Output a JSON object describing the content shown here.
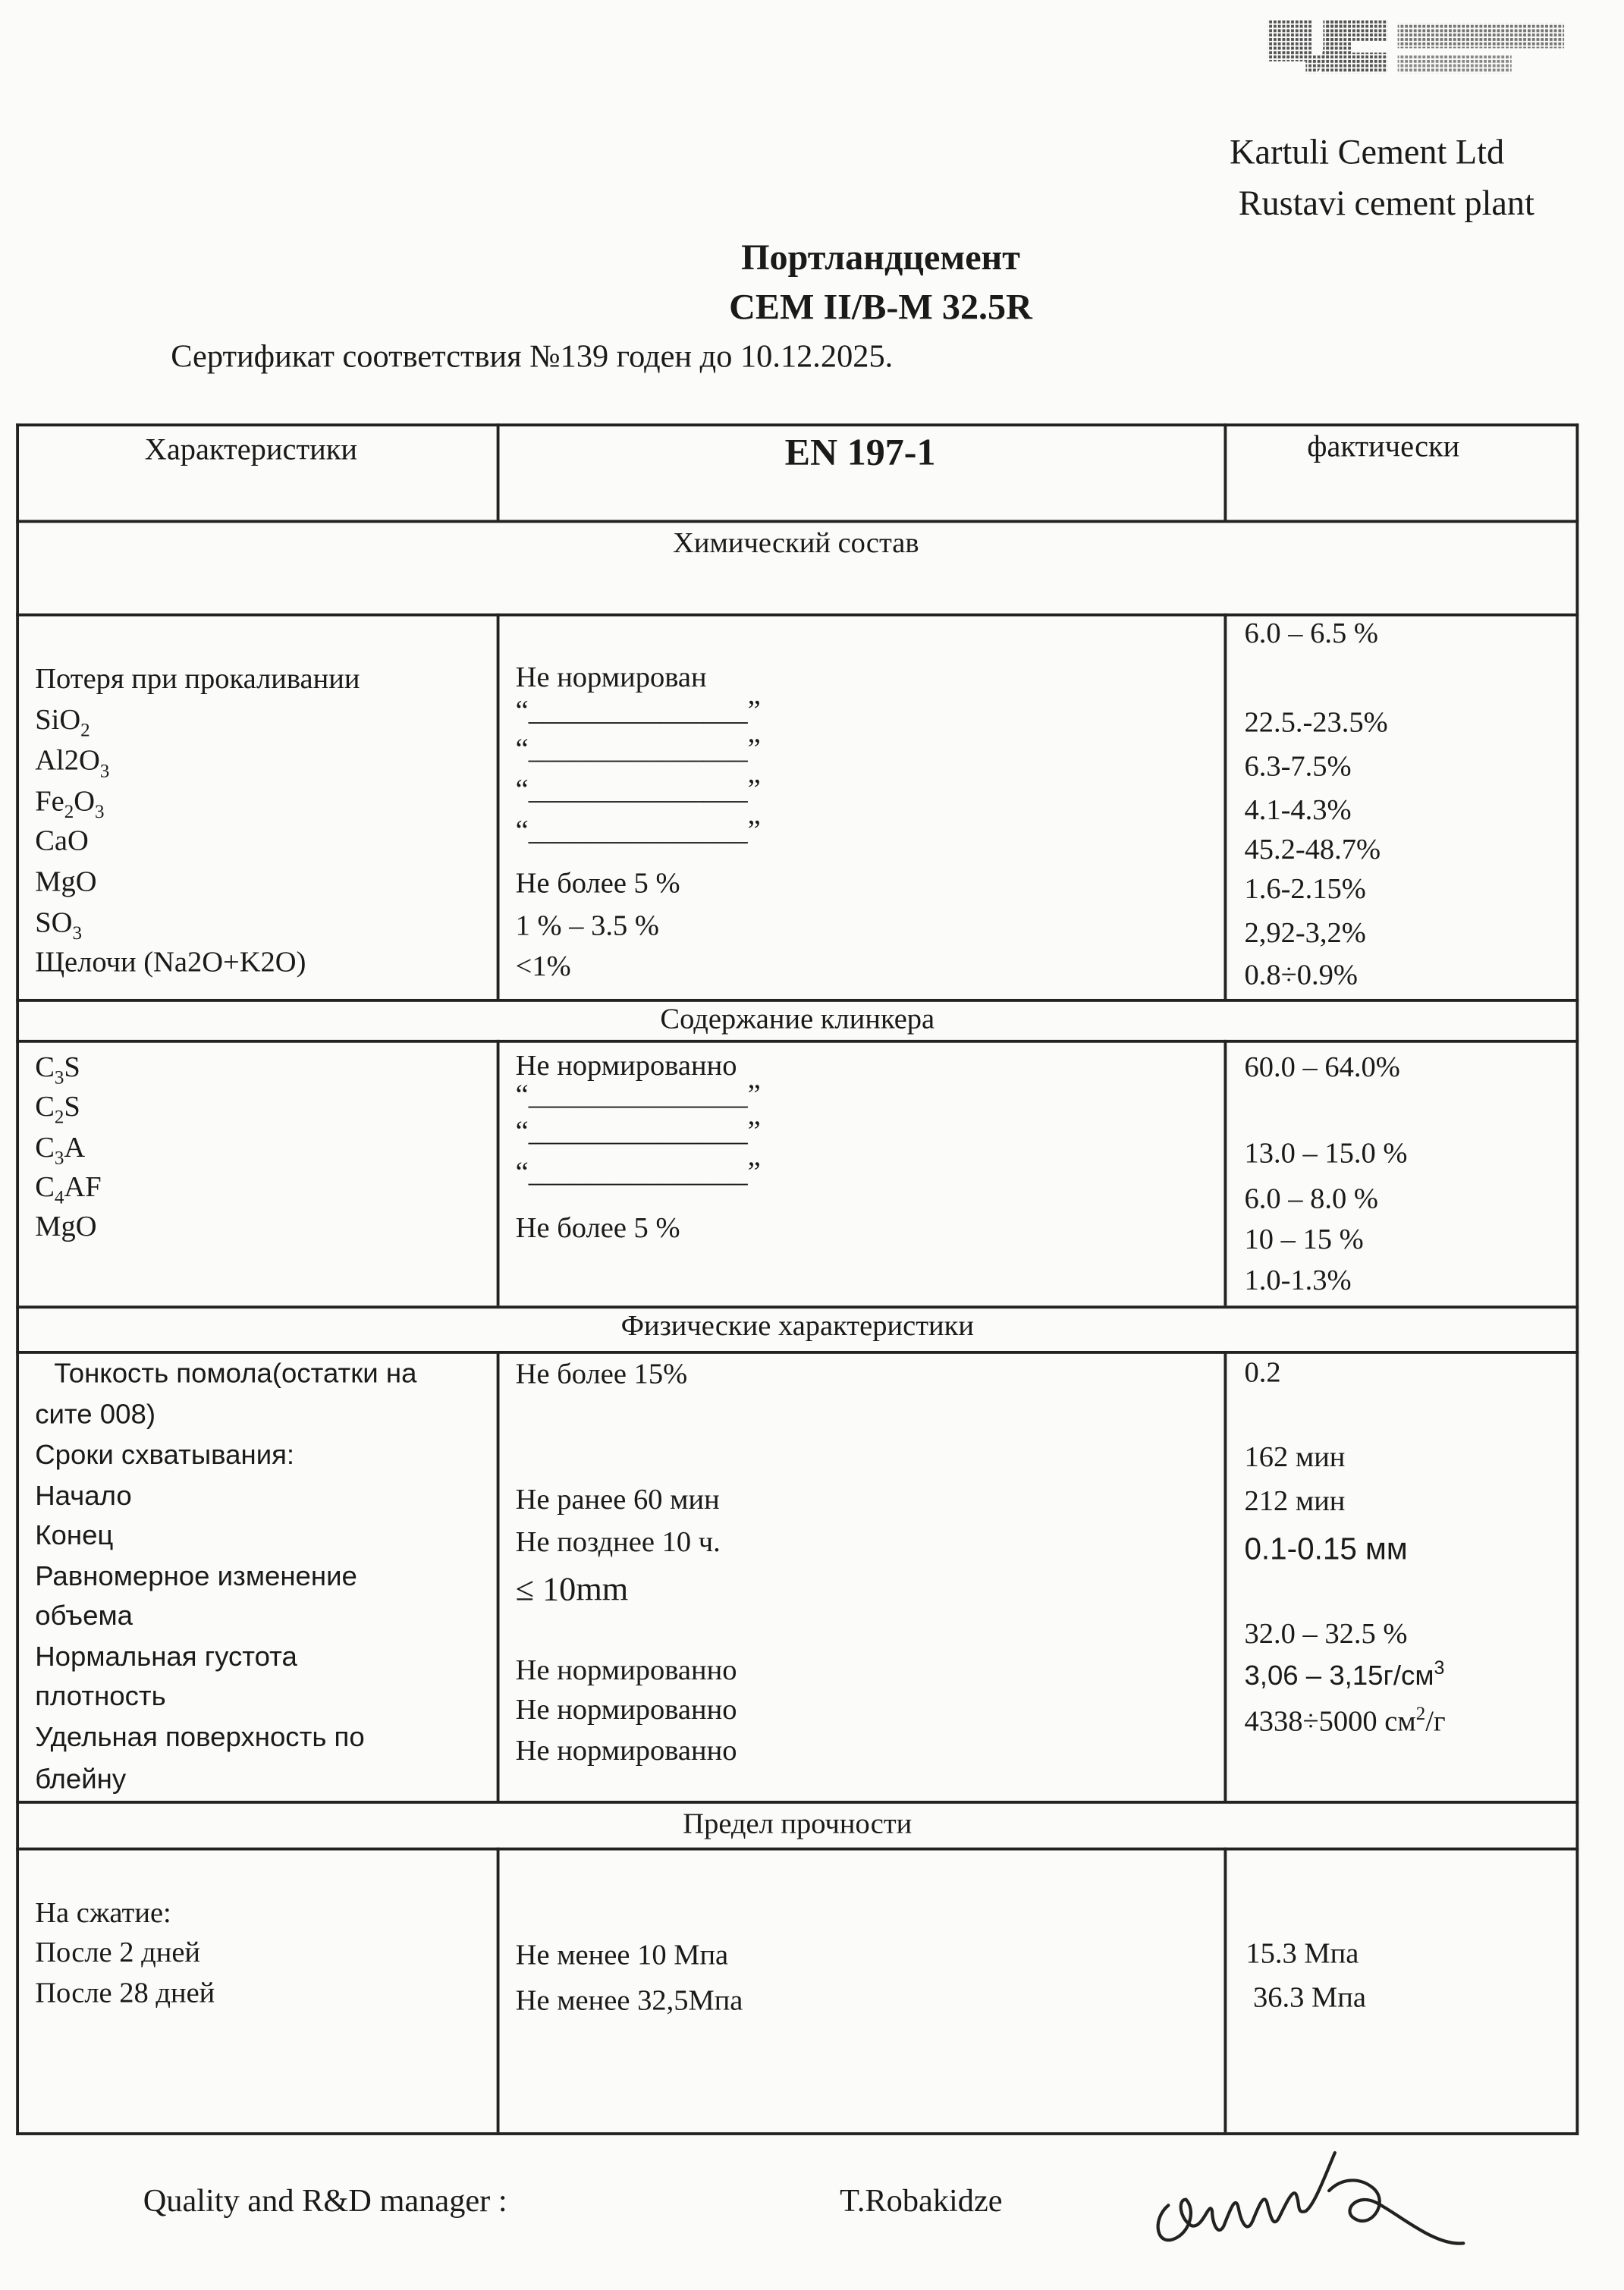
{
  "logo": {
    "mark": "KC",
    "line1": "ქართული",
    "line2": "ცემენტი"
  },
  "company": {
    "name": "Kartuli Cement Ltd",
    "plant": "Rustavi cement plant"
  },
  "title": {
    "product": "Портландцемент",
    "grade": "CEM II/B-M 32.5R",
    "certificate": "Сертификат соответствия №139 годен до 10.12.2025."
  },
  "table": {
    "headers": [
      "Характеристики",
      "EN 197-1",
      "фактически"
    ],
    "sections": {
      "chemical": "Химический состав",
      "clinker": "Содержание клинкера",
      "physical": "Физические характеристики",
      "strength": "Предел прочности"
    },
    "chemical": {
      "names": [
        {
          "t": "Потеря при прокаливании",
          "s": ""
        },
        {
          "t": "SiO",
          "s": "2"
        },
        {
          "t": "Al2O",
          "s": "3"
        },
        {
          "t": "Fe",
          "s": "2",
          "t2": "O",
          "s2": "3"
        },
        {
          "t": "CaO",
          "s": ""
        },
        {
          "t": "MgO",
          "s": ""
        },
        {
          "t": "SO",
          "s": "3"
        },
        {
          "t": "Щелочи (Na2O+K2O)",
          "s": ""
        }
      ],
      "norms": [
        "Не нормирован",
        "“_______________”",
        "“_______________”",
        "“_______________”",
        "“_______________”",
        "Не более  5  %",
        "1  %  –  3.5  %",
        "<1%"
      ],
      "actual": [
        "6.0  –  6.5  %",
        "22.5.-23.5%",
        "6.3-7.5%",
        "4.1-4.3%",
        "45.2-48.7%",
        "1.6-2.15%",
        "2,92-3,2%",
        "0.8÷0.9%"
      ]
    },
    "clinker": {
      "names": [
        {
          "t": "C",
          "s": "3",
          "t2": "S"
        },
        {
          "t": "C",
          "s": "2",
          "t2": "S"
        },
        {
          "t": "C",
          "s": "3",
          "t2": "A"
        },
        {
          "t": "C",
          "s": "4",
          "t2": "AF"
        },
        {
          "t": "MgO",
          "s": "",
          "t2": ""
        }
      ],
      "norms": [
        "Не нормированно",
        "“_______________”",
        "“_______________”",
        "“_______________”",
        "Не более  5  %"
      ],
      "actual": [
        "60.0  –  64.0%",
        "13.0  –  15.0  %",
        "6.0  –    8.0  %",
        "10  –     15  %",
        "1.0-1.3%"
      ]
    },
    "physical": {
      "names": [
        "Тонкость помола(остатки на",
        "сите 008)",
        "Сроки схватывания:",
        "Начало",
        "Конец",
        "Равномерное изменение",
        "объема",
        "Нормальная густота",
        "плотность",
        "Удельная поверхность по",
        "блейну"
      ],
      "norms": [
        "Не более 15%",
        "Не ранее  60 мин",
        "Не позднее 10 ч.",
        "≤ 10mm",
        "Не нормированно",
        "Не нормированно",
        "Не нормированно"
      ],
      "actual": [
        "0.2",
        "162    мин",
        "212  мин",
        "0.1-0.15 мм",
        "32.0  –  32.5  %",
        "3,06 – 3,15г/см",
        "4338÷5000 см",
        "/г"
      ],
      "actual_sup": [
        "3",
        "2"
      ]
    },
    "strength": {
      "names": [
        "На сжатие:",
        "После 2 дней",
        "После 28  дней"
      ],
      "norms": [
        "Не менее 10 Мпа",
        "Не менее 32,5Мпа"
      ],
      "actual": [
        "15.3  Мпа",
        "36.3  Мпа"
      ]
    }
  },
  "footer": {
    "role": "Quality and R&D manager :",
    "name": "T.Robakidze"
  }
}
